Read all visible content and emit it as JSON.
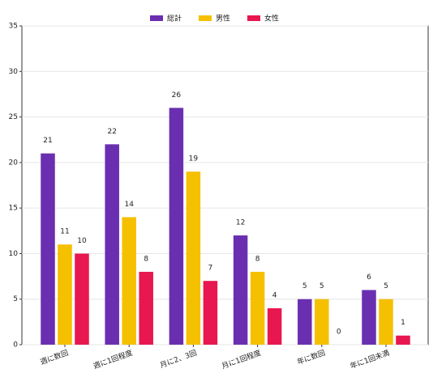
{
  "chart_data": {
    "type": "bar",
    "categories": [
      "週に数回",
      "週に1回程度",
      "月に2、3回",
      "月に1回程度",
      "年に数回",
      "年に1回未満"
    ],
    "series": [
      {
        "name": "総計",
        "color": "#6a2fb0",
        "values": [
          21,
          22,
          26,
          12,
          5,
          6
        ]
      },
      {
        "name": "男性",
        "color": "#f5c000",
        "values": [
          11,
          14,
          19,
          8,
          5,
          5
        ]
      },
      {
        "name": "女性",
        "color": "#e8174f",
        "values": [
          10,
          8,
          7,
          4,
          0,
          1
        ]
      }
    ],
    "ylim": [
      0,
      35
    ],
    "yticks": [
      0,
      5,
      10,
      15,
      20,
      25,
      30,
      35
    ],
    "grid": true,
    "legend": "top"
  }
}
